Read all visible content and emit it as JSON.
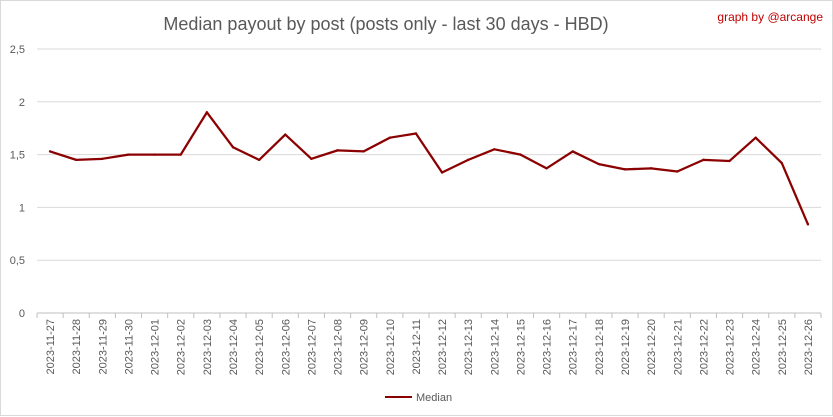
{
  "chart_data": {
    "type": "line",
    "title": "Median payout by post (posts only - last 30 days - HBD)",
    "credit": "graph by @arcange",
    "xlabel": "",
    "ylabel": "",
    "ylim": [
      0,
      2.5
    ],
    "yticks": [
      "0",
      "0,5",
      "1",
      "1,5",
      "2",
      "2,5"
    ],
    "grid": true,
    "legend_position": "bottom",
    "categories": [
      "2023-11-27",
      "2023-11-28",
      "2023-11-29",
      "2023-11-30",
      "2023-12-01",
      "2023-12-02",
      "2023-12-03",
      "2023-12-04",
      "2023-12-05",
      "2023-12-06",
      "2023-12-07",
      "2023-12-08",
      "2023-12-09",
      "2023-12-10",
      "2023-12-11",
      "2023-12-12",
      "2023-12-13",
      "2023-12-14",
      "2023-12-15",
      "2023-12-16",
      "2023-12-17",
      "2023-12-18",
      "2023-12-19",
      "2023-12-20",
      "2023-12-21",
      "2023-12-22",
      "2023-12-23",
      "2023-12-24",
      "2023-12-25",
      "2023-12-26"
    ],
    "series": [
      {
        "name": "Median",
        "color": "#8b0000",
        "values": [
          1.53,
          1.45,
          1.46,
          1.5,
          1.5,
          1.5,
          1.9,
          1.57,
          1.45,
          1.69,
          1.46,
          1.54,
          1.53,
          1.66,
          1.7,
          1.33,
          1.45,
          1.55,
          1.5,
          1.37,
          1.53,
          1.41,
          1.36,
          1.37,
          1.34,
          1.45,
          1.44,
          1.66,
          1.42,
          0.84
        ]
      }
    ]
  }
}
